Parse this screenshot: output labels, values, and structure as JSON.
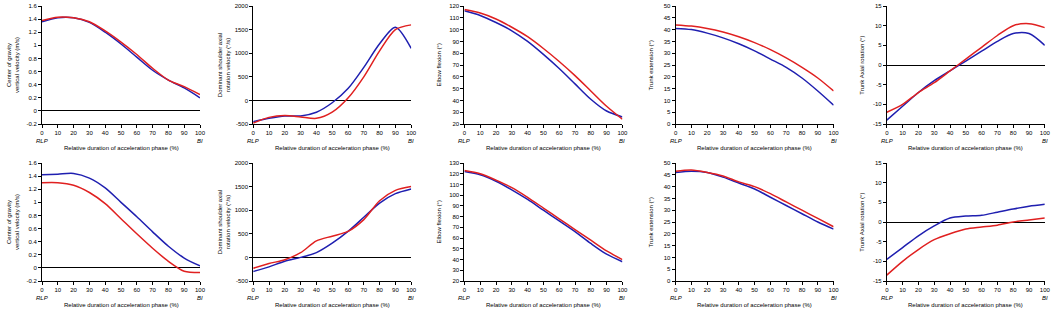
{
  "chart_data": [
    {
      "type": "line",
      "ylabel": "Center of gravity vertical velocity (m/s)",
      "xlabel": "Relative duration of acceleration phase (%)",
      "x": [
        0,
        10,
        20,
        30,
        40,
        50,
        60,
        70,
        80,
        90,
        100
      ],
      "xlim": [
        0,
        100
      ],
      "xticks": [
        0,
        10,
        20,
        30,
        40,
        50,
        60,
        70,
        80,
        90,
        100
      ],
      "ylim": [
        -0.2,
        1.6
      ],
      "yticks": [
        -0.2,
        0,
        0.2,
        0.4,
        0.6,
        0.8,
        1,
        1.2,
        1.4,
        1.6
      ],
      "grid": false,
      "series": [
        {
          "color": "#1f1fb0",
          "values": [
            1.36,
            1.42,
            1.42,
            1.35,
            1.2,
            1.02,
            0.82,
            0.62,
            0.47,
            0.35,
            0.2
          ]
        },
        {
          "color": "#e02020",
          "values": [
            1.38,
            1.43,
            1.42,
            1.36,
            1.22,
            1.05,
            0.86,
            0.65,
            0.47,
            0.37,
            0.25
          ]
        }
      ],
      "annotations": [
        {
          "text": "RLP",
          "x": 0
        },
        {
          "text": "BI",
          "x": 100
        }
      ]
    },
    {
      "type": "line",
      "ylabel": "Dominant shoulder axial rotation velocity (°/s)",
      "xlabel": "Relative duration of acceleration phase (%)",
      "x": [
        0,
        10,
        20,
        30,
        40,
        50,
        60,
        70,
        80,
        90,
        100
      ],
      "xlim": [
        0,
        100
      ],
      "xticks": [
        0,
        10,
        20,
        30,
        40,
        50,
        60,
        70,
        80,
        90,
        100
      ],
      "ylim": [
        -500,
        2000
      ],
      "yticks": [
        -500,
        0,
        500,
        1000,
        1500,
        2000
      ],
      "grid": false,
      "series": [
        {
          "color": "#1f1fb0",
          "values": [
            -450,
            -380,
            -330,
            -330,
            -250,
            -50,
            250,
            700,
            1200,
            1550,
            1100
          ]
        },
        {
          "color": "#e02020",
          "values": [
            -480,
            -360,
            -320,
            -350,
            -380,
            -250,
            50,
            500,
            1050,
            1500,
            1600
          ]
        }
      ],
      "annotations": [
        {
          "text": "RLP",
          "x": 0
        },
        {
          "text": "BI",
          "x": 100
        }
      ]
    },
    {
      "type": "line",
      "ylabel": "Elbow flexion (°)",
      "xlabel": "Relative duration of acceleration phase (%)",
      "x": [
        0,
        10,
        20,
        30,
        40,
        50,
        60,
        70,
        80,
        90,
        100
      ],
      "xlim": [
        0,
        100
      ],
      "xticks": [
        0,
        10,
        20,
        30,
        40,
        50,
        60,
        70,
        80,
        90,
        100
      ],
      "ylim": [
        20,
        120
      ],
      "yticks": [
        20,
        30,
        40,
        50,
        60,
        70,
        80,
        90,
        100,
        110,
        120
      ],
      "grid": false,
      "series": [
        {
          "color": "#1f1fb0",
          "values": [
            116,
            112,
            106,
            99,
            90,
            79,
            67,
            54,
            41,
            31,
            26
          ]
        },
        {
          "color": "#e02020",
          "values": [
            117,
            114,
            109,
            102,
            94,
            84,
            73,
            61,
            48,
            35,
            24
          ]
        }
      ],
      "annotations": [
        {
          "text": "RLP",
          "x": 0
        },
        {
          "text": "BI",
          "x": 100
        }
      ]
    },
    {
      "type": "line",
      "ylabel": "Trunk extension (°)",
      "xlabel": "Relative duration of acceleration phase (%)",
      "x": [
        0,
        10,
        20,
        30,
        40,
        50,
        60,
        70,
        80,
        90,
        100
      ],
      "xlim": [
        0,
        100
      ],
      "xticks": [
        0,
        10,
        20,
        30,
        40,
        50,
        60,
        70,
        80,
        90,
        100
      ],
      "ylim": [
        0,
        50
      ],
      "yticks": [
        0,
        5,
        10,
        15,
        20,
        25,
        30,
        35,
        40,
        45,
        50
      ],
      "grid": false,
      "series": [
        {
          "color": "#1f1fb0",
          "values": [
            40.5,
            40,
            38.5,
            36.5,
            34,
            31,
            27.5,
            24,
            19.5,
            14,
            8
          ]
        },
        {
          "color": "#e02020",
          "values": [
            42,
            41.5,
            40.5,
            39,
            37,
            34.5,
            31.5,
            28,
            24,
            19.5,
            14
          ]
        }
      ],
      "annotations": [
        {
          "text": "RLP",
          "x": 0
        },
        {
          "text": "BI",
          "x": 100
        }
      ]
    },
    {
      "type": "line",
      "ylabel": "Trunk Axial rotation (°)",
      "xlabel": "Relative duration of acceleration phase (%)",
      "x": [
        0,
        10,
        20,
        30,
        40,
        50,
        60,
        70,
        80,
        90,
        100
      ],
      "xlim": [
        0,
        100
      ],
      "xticks": [
        0,
        10,
        20,
        30,
        40,
        50,
        60,
        70,
        80,
        90,
        100
      ],
      "ylim": [
        -15,
        15
      ],
      "yticks": [
        -15,
        -10,
        -5,
        0,
        5,
        10,
        15
      ],
      "grid": false,
      "series": [
        {
          "color": "#1f1fb0",
          "values": [
            -14,
            -10.5,
            -7,
            -4,
            -1.5,
            1,
            3.5,
            6,
            8,
            8,
            5
          ]
        },
        {
          "color": "#e02020",
          "values": [
            -12,
            -10,
            -7,
            -4.5,
            -1.5,
            1.5,
            4.5,
            7.5,
            10,
            10.5,
            9.5
          ]
        }
      ],
      "annotations": [
        {
          "text": "RLP",
          "x": 0
        },
        {
          "text": "BI",
          "x": 100
        }
      ]
    },
    {
      "type": "line",
      "ylabel": "Center of gravity vertical velocity (m/s)",
      "xlabel": "Relative duration of acceleration phase (%)",
      "x": [
        0,
        10,
        20,
        30,
        40,
        50,
        60,
        70,
        80,
        90,
        100
      ],
      "xlim": [
        0,
        100
      ],
      "xticks": [
        0,
        10,
        20,
        30,
        40,
        50,
        60,
        70,
        80,
        90,
        100
      ],
      "ylim": [
        -0.2,
        1.6
      ],
      "yticks": [
        -0.2,
        0,
        0.2,
        0.4,
        0.6,
        0.8,
        1,
        1.2,
        1.4,
        1.6
      ],
      "grid": false,
      "series": [
        {
          "color": "#1f1fb0",
          "values": [
            1.42,
            1.43,
            1.44,
            1.37,
            1.22,
            1.0,
            0.78,
            0.55,
            0.33,
            0.15,
            0.03
          ]
        },
        {
          "color": "#e02020",
          "values": [
            1.3,
            1.3,
            1.26,
            1.15,
            0.98,
            0.75,
            0.52,
            0.3,
            0.1,
            -0.05,
            -0.07
          ]
        }
      ],
      "annotations": [
        {
          "text": "RLP",
          "x": 0
        },
        {
          "text": "BI",
          "x": 100
        }
      ]
    },
    {
      "type": "line",
      "ylabel": "Dominant shoulder axial rotation velocity (°/s)",
      "xlabel": "Relative duration of acceleration phase (%)",
      "x": [
        0,
        10,
        20,
        30,
        40,
        50,
        60,
        70,
        80,
        90,
        100
      ],
      "xlim": [
        0,
        100
      ],
      "xticks": [
        0,
        10,
        20,
        30,
        40,
        50,
        60,
        70,
        80,
        90,
        100
      ],
      "ylim": [
        -500,
        2000
      ],
      "yticks": [
        -500,
        0,
        500,
        1000,
        1500,
        2000
      ],
      "grid": false,
      "series": [
        {
          "color": "#1f1fb0",
          "values": [
            -300,
            -200,
            -80,
            0,
            100,
            300,
            550,
            850,
            1150,
            1350,
            1450
          ]
        },
        {
          "color": "#e02020",
          "values": [
            -230,
            -130,
            -50,
            100,
            350,
            450,
            550,
            800,
            1200,
            1420,
            1500
          ]
        }
      ],
      "annotations": [
        {
          "text": "RLP",
          "x": 0
        },
        {
          "text": "BI",
          "x": 100
        }
      ]
    },
    {
      "type": "line",
      "ylabel": "Elbow flexion (°)",
      "xlabel": "Relative duration of acceleration phase (%)",
      "x": [
        0,
        10,
        20,
        30,
        40,
        50,
        60,
        70,
        80,
        90,
        100
      ],
      "xlim": [
        0,
        100
      ],
      "xticks": [
        0,
        10,
        20,
        30,
        40,
        50,
        60,
        70,
        80,
        90,
        100
      ],
      "ylim": [
        20,
        130
      ],
      "yticks": [
        20,
        30,
        40,
        50,
        60,
        70,
        80,
        90,
        100,
        110,
        120,
        130
      ],
      "grid": false,
      "series": [
        {
          "color": "#1f1fb0",
          "values": [
            122,
            119,
            113,
            105,
            96,
            86,
            76,
            66,
            55,
            45,
            38
          ]
        },
        {
          "color": "#e02020",
          "values": [
            123,
            120,
            114,
            107,
            98,
            88,
            78,
            68,
            58,
            48,
            40
          ]
        }
      ],
      "annotations": [
        {
          "text": "RLP",
          "x": 0
        },
        {
          "text": "BI",
          "x": 100
        }
      ]
    },
    {
      "type": "line",
      "ylabel": "Trunk extension (°)",
      "xlabel": "Relative duration of acceleration phase (%)",
      "x": [
        0,
        10,
        20,
        30,
        40,
        50,
        60,
        70,
        80,
        90,
        100
      ],
      "xlim": [
        0,
        100
      ],
      "xticks": [
        0,
        10,
        20,
        30,
        40,
        50,
        60,
        70,
        80,
        90,
        100
      ],
      "ylim": [
        0,
        50
      ],
      "yticks": [
        0,
        5,
        10,
        15,
        20,
        25,
        30,
        35,
        40,
        45,
        50
      ],
      "grid": false,
      "series": [
        {
          "color": "#1f1fb0",
          "values": [
            46,
            46.5,
            46,
            44,
            41.5,
            39,
            35.5,
            32,
            28.5,
            25,
            22
          ]
        },
        {
          "color": "#e02020",
          "values": [
            46.5,
            47,
            46,
            44.5,
            42,
            40,
            37,
            33.5,
            30,
            26.5,
            23
          ]
        }
      ],
      "annotations": [
        {
          "text": "RLP",
          "x": 0
        },
        {
          "text": "BI",
          "x": 100
        }
      ]
    },
    {
      "type": "line",
      "ylabel": "Trunk Axial rotation (°)",
      "xlabel": "Relative duration of acceleration phase (%)",
      "x": [
        0,
        10,
        20,
        30,
        40,
        50,
        60,
        70,
        80,
        90,
        100
      ],
      "xlim": [
        0,
        100
      ],
      "xticks": [
        0,
        10,
        20,
        30,
        40,
        50,
        60,
        70,
        80,
        90,
        100
      ],
      "ylim": [
        -15,
        15
      ],
      "yticks": [
        -15,
        -10,
        -5,
        0,
        5,
        10,
        15
      ],
      "grid": false,
      "series": [
        {
          "color": "#1f1fb0",
          "values": [
            -9.5,
            -6.5,
            -3.5,
            -1,
            1,
            1.5,
            1.7,
            2.5,
            3.3,
            4,
            4.5
          ]
        },
        {
          "color": "#e02020",
          "values": [
            -13.5,
            -10,
            -7,
            -4.5,
            -3,
            -1.8,
            -1.3,
            -0.8,
            0,
            0.5,
            1
          ]
        }
      ],
      "annotations": [
        {
          "text": "RLP",
          "x": 0
        },
        {
          "text": "BI",
          "x": 100
        }
      ]
    }
  ]
}
